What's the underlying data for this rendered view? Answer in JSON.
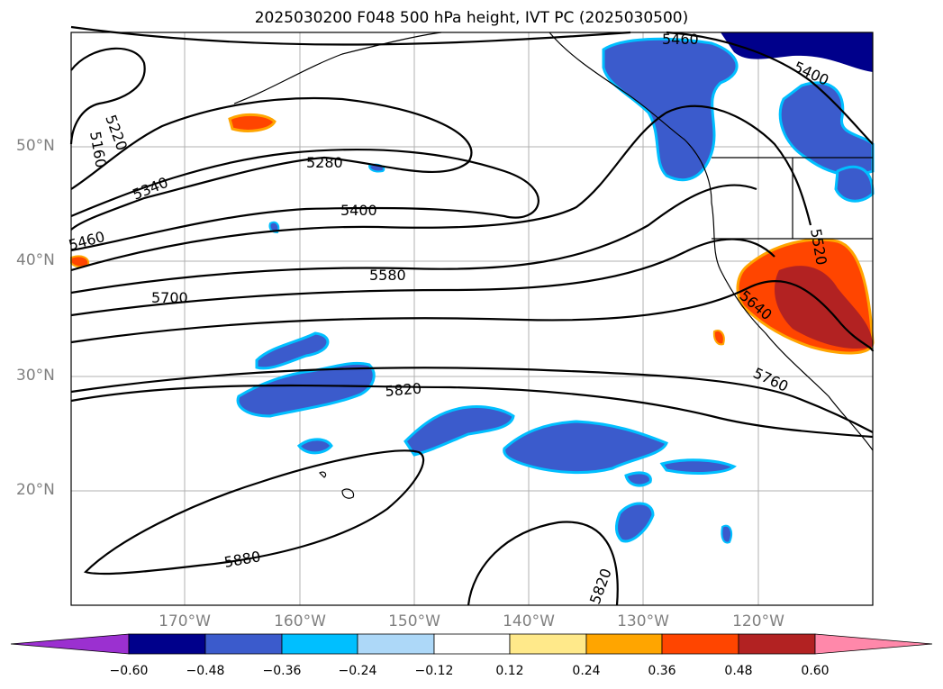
{
  "title": "2025030200 F048 500 hPa height, IVT PC (2025030500)",
  "lat_labels": [
    "50°N",
    "40°N",
    "30°N",
    "20°N"
  ],
  "lon_labels": [
    "170°W",
    "160°W",
    "150°W",
    "140°W",
    "130°W",
    "120°W"
  ],
  "contour_labels": [
    "5460",
    "5400",
    "5220",
    "5160",
    "5340",
    "5280",
    "5400",
    "5460",
    "5520",
    "5580",
    "5700",
    "5640",
    "5820",
    "5760",
    "5880",
    "5820"
  ],
  "colorbar": {
    "ticks": [
      "−0.60",
      "−0.48",
      "−0.36",
      "−0.24",
      "−0.12",
      "0.12",
      "0.24",
      "0.36",
      "0.48",
      "0.60"
    ],
    "colors": [
      "#9b30d0",
      "#00008b",
      "#3b5bcc",
      "#00bfff",
      "#add8f8",
      "#ffffff",
      "#ffe98a",
      "#ffa500",
      "#ff4500",
      "#b22222",
      "#ff88aa"
    ]
  }
}
